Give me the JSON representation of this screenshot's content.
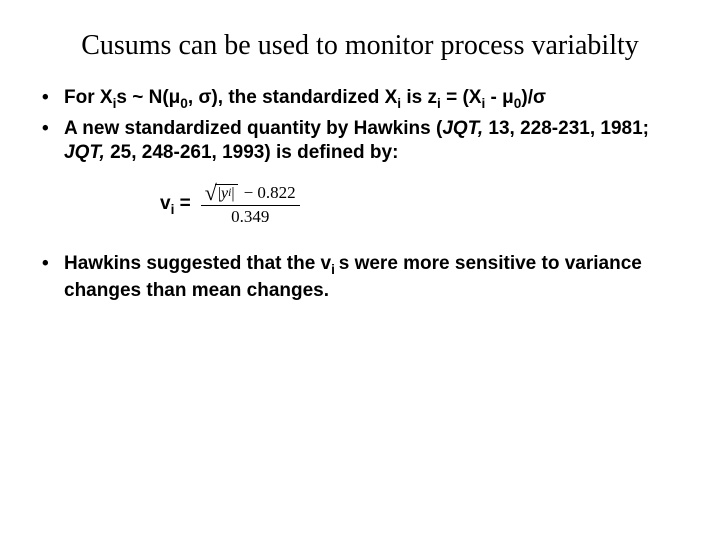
{
  "title": "Cusums can be used to monitor process variabilty",
  "bullet1": {
    "pre": "For X",
    "sub1": "i",
    "mid1": "s ~ N(μ",
    "sub2": "0",
    "mid2": ", σ), the standardized X",
    "sub3": "i",
    "mid3": " is z",
    "sub4": "i",
    "mid4": " = (X",
    "sub5": "i",
    "mid5": " - μ",
    "sub6": "0",
    "mid6": ")/σ"
  },
  "bullet2": {
    "t1": " A new standardized quantity by Hawkins (",
    "j1": "JQT,",
    "t2": " 13, 228-231, 1981;  ",
    "j2": "JQT,",
    "t3": " 25, 248-261, 1993) is  defined by:"
  },
  "formula": {
    "lhs_pre": "v",
    "lhs_sub": "i",
    "lhs_post": " =",
    "sqrt_inner_pre": "|",
    "sqrt_inner_var": "y",
    "sqrt_inner_sub": "i",
    "sqrt_inner_post": "|",
    "num_tail": " − 0.822",
    "den": "0.349"
  },
  "bullet3": {
    "t1": "Hawkins suggested that the v",
    "sub1": "i ",
    "t2": "s were more sensitive to variance changes than mean changes."
  }
}
